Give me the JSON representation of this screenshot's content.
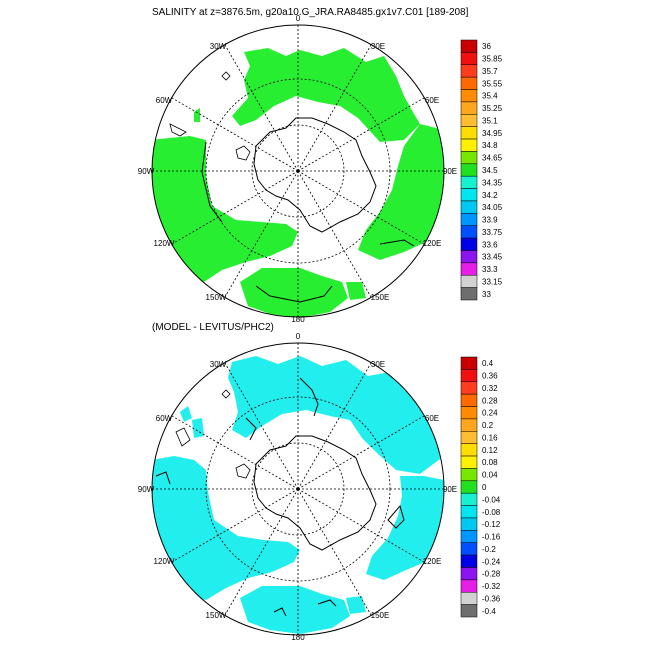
{
  "panels": [
    {
      "id": "top",
      "title": "SALINITY at z=3876.5m, g20a10.G_JRA.RA8485.gx1v7.C01 [189-208]",
      "lon_labels": [
        "0",
        "30E",
        "60E",
        "90E",
        "120E",
        "150E",
        "180",
        "150W",
        "120W",
        "90W",
        "60W",
        "30W"
      ],
      "colorbar": {
        "labels": [
          "36",
          "35.85",
          "35.7",
          "35.55",
          "35.4",
          "35.25",
          "35.1",
          "34.95",
          "34.8",
          "34.65",
          "34.5",
          "34.35",
          "34.2",
          "34.05",
          "33.9",
          "33.75",
          "33.6",
          "33.45",
          "33.3",
          "33.15",
          "33"
        ],
        "colors": [
          "#c80000",
          "#f01010",
          "#ff3c1e",
          "#ff6a00",
          "#ff8c00",
          "#ffa51e",
          "#ffbe32",
          "#ffdd00",
          "#fff000",
          "#78e600",
          "#20e020",
          "#18f0d0",
          "#00e6f0",
          "#00c8f0",
          "#0096ff",
          "#0050ff",
          "#0000e6",
          "#8c14f0",
          "#e61ee6",
          "#d2d2d2",
          "#6e6e6e"
        ]
      },
      "fill_color": "#28ee32"
    },
    {
      "id": "bottom",
      "title": "(MODEL - LEVITUS/PHC2)",
      "lon_labels": [
        "0",
        "30E",
        "60E",
        "90E",
        "120E",
        "150E",
        "180",
        "150W",
        "120W",
        "90W",
        "60W",
        "30W"
      ],
      "colorbar": {
        "labels": [
          "0.4",
          "0.36",
          "0.32",
          "0.28",
          "0.24",
          "0.2",
          "0.16",
          "0.12",
          "0.08",
          "0.04",
          "0",
          "-0.04",
          "-0.08",
          "-0.12",
          "-0.16",
          "-0.2",
          "-0.24",
          "-0.28",
          "-0.32",
          "-0.36",
          "-0.4"
        ],
        "colors": [
          "#c80000",
          "#f01010",
          "#ff3c1e",
          "#ff6a00",
          "#ff8c00",
          "#ffa51e",
          "#ffbe32",
          "#ffdd00",
          "#fff000",
          "#78e600",
          "#20e020",
          "#18f0d0",
          "#00e6f0",
          "#00c8f0",
          "#0096ff",
          "#0050ff",
          "#0000e6",
          "#8c14f0",
          "#e61ee6",
          "#d2d2d2",
          "#6e6e6e"
        ]
      },
      "fill_color": "#22eeee"
    }
  ]
}
